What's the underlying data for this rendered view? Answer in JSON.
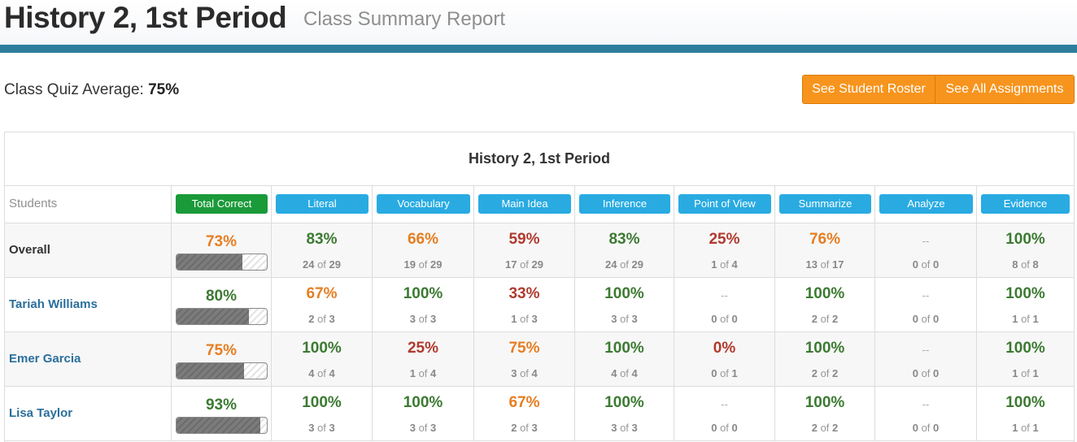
{
  "header": {
    "title": "History 2, 1st Period",
    "subtitle": "Class Summary Report"
  },
  "summary": {
    "label": "Class Quiz Average: ",
    "value": "75%"
  },
  "buttons": {
    "roster": "See Student Roster",
    "assignments": "See All Assignments"
  },
  "table": {
    "title": "History 2, 1st Period",
    "students_label": "Students",
    "columns": [
      "Total Correct",
      "Literal",
      "Vocabulary",
      "Main Idea",
      "Inference",
      "Point of View",
      "Summarize",
      "Analyze",
      "Evidence"
    ],
    "rows": [
      {
        "name": "Overall",
        "is_link": false,
        "total": {
          "pct": "73%",
          "fill": 0.73,
          "color": "#e67e22"
        },
        "cells": [
          {
            "pct": "83%",
            "n": "24",
            "d": "29",
            "color": "#3c7a32"
          },
          {
            "pct": "66%",
            "n": "19",
            "d": "29",
            "color": "#e67e22"
          },
          {
            "pct": "59%",
            "n": "17",
            "d": "29",
            "color": "#b03a2e"
          },
          {
            "pct": "83%",
            "n": "24",
            "d": "29",
            "color": "#3c7a32"
          },
          {
            "pct": "25%",
            "n": "1",
            "d": "4",
            "color": "#b03a2e"
          },
          {
            "pct": "76%",
            "n": "13",
            "d": "17",
            "color": "#e67e22"
          },
          {
            "pct": "--",
            "n": "0",
            "d": "0",
            "color": "#aaaaaa"
          },
          {
            "pct": "100%",
            "n": "8",
            "d": "8",
            "color": "#3c7a32"
          }
        ]
      },
      {
        "name": "Tariah Williams",
        "is_link": true,
        "total": {
          "pct": "80%",
          "fill": 0.8,
          "color": "#3c7a32"
        },
        "cells": [
          {
            "pct": "67%",
            "n": "2",
            "d": "3",
            "color": "#e67e22"
          },
          {
            "pct": "100%",
            "n": "3",
            "d": "3",
            "color": "#3c7a32"
          },
          {
            "pct": "33%",
            "n": "1",
            "d": "3",
            "color": "#b03a2e"
          },
          {
            "pct": "100%",
            "n": "3",
            "d": "3",
            "color": "#3c7a32"
          },
          {
            "pct": "--",
            "n": "0",
            "d": "0",
            "color": "#aaaaaa"
          },
          {
            "pct": "100%",
            "n": "2",
            "d": "2",
            "color": "#3c7a32"
          },
          {
            "pct": "--",
            "n": "0",
            "d": "0",
            "color": "#aaaaaa"
          },
          {
            "pct": "100%",
            "n": "1",
            "d": "1",
            "color": "#3c7a32"
          }
        ]
      },
      {
        "name": "Emer Garcia",
        "is_link": true,
        "total": {
          "pct": "75%",
          "fill": 0.75,
          "color": "#e67e22"
        },
        "cells": [
          {
            "pct": "100%",
            "n": "4",
            "d": "4",
            "color": "#3c7a32"
          },
          {
            "pct": "25%",
            "n": "1",
            "d": "4",
            "color": "#b03a2e"
          },
          {
            "pct": "75%",
            "n": "3",
            "d": "4",
            "color": "#e67e22"
          },
          {
            "pct": "100%",
            "n": "4",
            "d": "4",
            "color": "#3c7a32"
          },
          {
            "pct": "0%",
            "n": "0",
            "d": "1",
            "color": "#b03a2e"
          },
          {
            "pct": "100%",
            "n": "2",
            "d": "2",
            "color": "#3c7a32"
          },
          {
            "pct": "--",
            "n": "0",
            "d": "0",
            "color": "#aaaaaa"
          },
          {
            "pct": "100%",
            "n": "1",
            "d": "1",
            "color": "#3c7a32"
          }
        ]
      },
      {
        "name": "Lisa Taylor",
        "is_link": true,
        "total": {
          "pct": "93%",
          "fill": 0.93,
          "color": "#3c7a32"
        },
        "cells": [
          {
            "pct": "100%",
            "n": "3",
            "d": "3",
            "color": "#3c7a32"
          },
          {
            "pct": "100%",
            "n": "3",
            "d": "3",
            "color": "#3c7a32"
          },
          {
            "pct": "67%",
            "n": "2",
            "d": "3",
            "color": "#e67e22"
          },
          {
            "pct": "100%",
            "n": "3",
            "d": "3",
            "color": "#3c7a32"
          },
          {
            "pct": "--",
            "n": "0",
            "d": "0",
            "color": "#aaaaaa"
          },
          {
            "pct": "100%",
            "n": "2",
            "d": "2",
            "color": "#3c7a32"
          },
          {
            "pct": "--",
            "n": "0",
            "d": "0",
            "color": "#aaaaaa"
          },
          {
            "pct": "100%",
            "n": "1",
            "d": "1",
            "color": "#3c7a32"
          }
        ]
      }
    ],
    "of_word": "of"
  }
}
